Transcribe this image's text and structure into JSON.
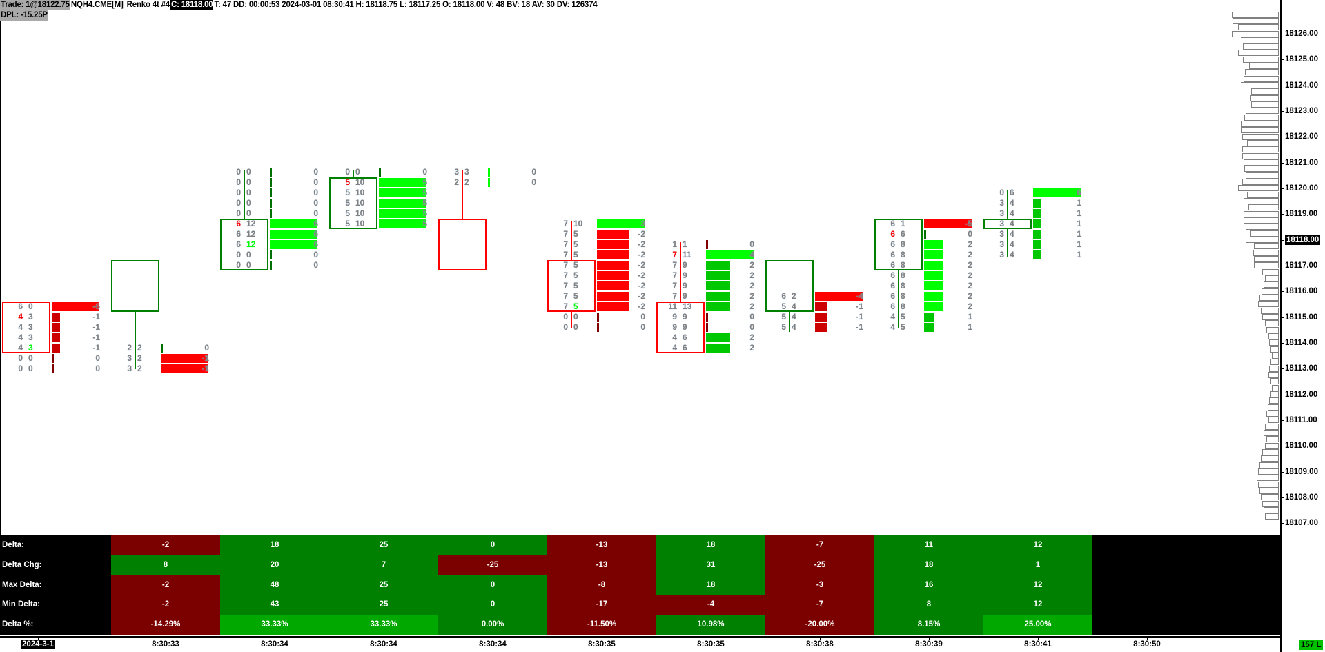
{
  "header": {
    "trade": "Trade: 1@18122.75",
    "symbol": "NQH4.CME[M]",
    "chart_type": "Renko 4t #4",
    "close": "C: 18118.00",
    "stats": "T: 47 DD: 00:00:53 2024-03-01 08:30:41 H: 18118.75 L: 18117.25 O: 18118.00 V: 48 BV: 18 AV: 30 DV: 126374",
    "dpl": "DPL: -15.25P"
  },
  "colors": {
    "up_candle": "#008000",
    "down_candle": "#ff0000",
    "pos_bright": "#00ff00",
    "pos_dim": "#00c800",
    "neg_bright": "#ff0000",
    "neg_dim": "#cc0000",
    "zero_up": "#007000",
    "zero_down": "#800000",
    "cell_neg": "#7b0000",
    "cell_pos": "#008000",
    "cell_strong": "#00a800",
    "bid_highlight": "#ff0000",
    "ask_highlight": "#00ff00"
  },
  "price_axis": {
    "labels": [
      "18126.00",
      "18125.00",
      "18124.00",
      "18123.00",
      "18122.00",
      "18121.00",
      "18120.00",
      "18119.00",
      "18118.00",
      "18117.00",
      "18116.00",
      "18115.00",
      "18114.00",
      "18113.00",
      "18112.00",
      "18111.00",
      "18110.00",
      "18109.00",
      "18108.00",
      "18107.00"
    ],
    "current": "18118.00"
  },
  "volume_profile": {
    "top_price": 18126.75,
    "tick": 0.25,
    "levels": [
      68,
      67,
      59,
      68,
      55,
      52,
      59,
      52,
      43,
      49,
      51,
      55,
      40,
      41,
      40,
      48,
      50,
      54,
      54,
      53,
      46,
      53,
      53,
      51,
      50,
      48,
      53,
      59,
      46,
      51,
      44,
      51,
      51,
      48,
      41,
      48,
      36,
      37,
      36,
      36,
      24,
      20,
      22,
      25,
      28,
      30,
      26,
      24,
      20,
      18,
      15,
      14,
      12,
      10,
      12,
      14,
      15,
      12,
      10,
      12,
      14,
      16,
      18,
      15,
      20,
      22,
      18,
      20,
      24,
      26,
      28,
      30,
      32,
      30,
      28,
      26,
      24,
      22,
      20
    ]
  },
  "candles": [
    {
      "dir": "down",
      "open": 18116.0,
      "close": 18115.0,
      "high": 18116.0,
      "low": 18115.0,
      "rows": [
        [
          18116.0,
          6,
          0,
          -6
        ],
        [
          18115.75,
          4,
          3,
          -1,
          "bid"
        ],
        [
          18115.5,
          4,
          3,
          -1
        ],
        [
          18115.25,
          4,
          3,
          -1
        ],
        [
          18115.0,
          4,
          3,
          -1,
          "ask"
        ],
        [
          18114.75,
          0,
          0,
          0
        ],
        [
          18114.5,
          0,
          0,
          0
        ]
      ]
    },
    {
      "dir": "up",
      "open": 18116.0,
      "close": 18117.0,
      "high": 18117.0,
      "low": 18114.5,
      "rows": [
        [
          18115.0,
          2,
          2,
          0
        ],
        [
          18114.75,
          3,
          2,
          -1
        ],
        [
          18114.5,
          3,
          2,
          -1
        ]
      ]
    },
    {
      "dir": "up",
      "open": 18117.0,
      "close": 18118.0,
      "high": 18119.25,
      "low": 18116.9,
      "rows": [
        [
          18119.25,
          0,
          0,
          0
        ],
        [
          18119.0,
          0,
          0,
          0
        ],
        [
          18118.75,
          0,
          0,
          0
        ],
        [
          18118.5,
          0,
          0,
          0
        ],
        [
          18118.25,
          0,
          0,
          0
        ],
        [
          18118.0,
          6,
          12,
          6,
          "bid"
        ],
        [
          18117.75,
          6,
          12,
          6
        ],
        [
          18117.5,
          6,
          12,
          6,
          "ask"
        ],
        [
          18117.25,
          0,
          0,
          0
        ],
        [
          18117.0,
          0,
          0,
          0
        ]
      ]
    },
    {
      "dir": "up",
      "open": 18118.0,
      "close": 18119.0,
      "high": 18119.25,
      "low": 18117.9,
      "rows": [
        [
          18119.25,
          0,
          0,
          0
        ],
        [
          18119.0,
          5,
          10,
          5,
          "bid"
        ],
        [
          18118.75,
          5,
          10,
          5
        ],
        [
          18118.5,
          5,
          10,
          5
        ],
        [
          18118.25,
          5,
          10,
          5
        ],
        [
          18118.0,
          5,
          10,
          5
        ]
      ]
    },
    {
      "dir": "down",
      "open": 18118.0,
      "close": 18117.0,
      "high": 18119.25,
      "low": 18117.0,
      "rows": [
        [
          18119.25,
          3,
          3,
          0
        ],
        [
          18119.0,
          2,
          2,
          0
        ]
      ]
    },
    {
      "dir": "down",
      "open": 18117.0,
      "close": 18116.0,
      "high": 18118.0,
      "low": 18115.5,
      "rows": [
        [
          18118.0,
          7,
          10,
          3
        ],
        [
          18117.75,
          7,
          5,
          -2
        ],
        [
          18117.5,
          7,
          5,
          -2
        ],
        [
          18117.25,
          7,
          5,
          -2
        ],
        [
          18117.0,
          7,
          5,
          -2
        ],
        [
          18116.75,
          7,
          5,
          -2
        ],
        [
          18116.5,
          7,
          5,
          -2
        ],
        [
          18116.25,
          7,
          5,
          -2
        ],
        [
          18116.0,
          7,
          5,
          -2,
          "ask"
        ],
        [
          18115.75,
          0,
          0,
          0
        ],
        [
          18115.5,
          0,
          0,
          0
        ]
      ]
    },
    {
      "dir": "down",
      "open": 18116.0,
      "close": 18115.0,
      "high": 18117.5,
      "low": 18115.0,
      "rows": [
        [
          18117.5,
          1,
          1,
          0
        ],
        [
          18117.25,
          7,
          11,
          4,
          "bid"
        ],
        [
          18117.0,
          7,
          9,
          2
        ],
        [
          18116.75,
          7,
          9,
          2
        ],
        [
          18116.5,
          7,
          9,
          2
        ],
        [
          18116.25,
          7,
          9,
          2
        ],
        [
          18116.0,
          11,
          13,
          2
        ],
        [
          18115.75,
          9,
          9,
          0
        ],
        [
          18115.5,
          9,
          9,
          0
        ],
        [
          18115.25,
          4,
          6,
          2
        ],
        [
          18115.0,
          4,
          6,
          2
        ]
      ]
    },
    {
      "dir": "up",
      "open": 18116.0,
      "close": 18117.0,
      "high": 18117.0,
      "low": 18115.4,
      "rows": [
        [
          18116.25,
          6,
          2,
          -4
        ],
        [
          18116.0,
          5,
          4,
          -1
        ],
        [
          18115.75,
          5,
          4,
          -1
        ],
        [
          18115.5,
          5,
          4,
          -1
        ]
      ]
    },
    {
      "dir": "up",
      "open": 18117.0,
      "close": 18118.0,
      "high": 18118.0,
      "low": 18115.5,
      "rows": [
        [
          18118.0,
          6,
          1,
          -5
        ],
        [
          18117.75,
          6,
          6,
          0,
          "bid"
        ],
        [
          18117.5,
          6,
          8,
          2
        ],
        [
          18117.25,
          6,
          8,
          2
        ],
        [
          18117.0,
          6,
          8,
          2
        ],
        [
          18116.75,
          6,
          8,
          2
        ],
        [
          18116.5,
          6,
          8,
          2
        ],
        [
          18116.25,
          6,
          8,
          2
        ],
        [
          18116.0,
          6,
          8,
          2
        ],
        [
          18115.75,
          4,
          5,
          1
        ],
        [
          18115.5,
          4,
          5,
          1
        ]
      ]
    },
    {
      "dir": "up",
      "open": 18118.0,
      "close": 18118.0,
      "high": 18118.75,
      "low": 18117.2,
      "rows": [
        [
          18118.75,
          0,
          6,
          6
        ],
        [
          18118.5,
          3,
          4,
          1
        ],
        [
          18118.25,
          3,
          4,
          1
        ],
        [
          18118.0,
          3,
          4,
          1
        ],
        [
          18117.75,
          3,
          4,
          1
        ],
        [
          18117.5,
          3,
          4,
          1
        ],
        [
          18117.25,
          3,
          4,
          1
        ]
      ]
    }
  ],
  "stats_table": {
    "row_labels": [
      "Delta:",
      "Delta Chg:",
      "Max Delta:",
      "Min Delta:",
      "Delta %:"
    ],
    "columns": [
      [
        "-2",
        "8",
        "-2",
        "-2",
        "-14.29%"
      ],
      [
        "18",
        "20",
        "48",
        "43",
        "33.33%"
      ],
      [
        "25",
        "7",
        "25",
        "25",
        "33.33%"
      ],
      [
        "0",
        "-25",
        "0",
        "0",
        "0.00%"
      ],
      [
        "-13",
        "-13",
        "-8",
        "-17",
        "-11.50%"
      ],
      [
        "18",
        "31",
        "18",
        "-4",
        "10.98%"
      ],
      [
        "-7",
        "-25",
        "-3",
        "-7",
        "-20.00%"
      ],
      [
        "11",
        "18",
        "16",
        "8",
        "8.15%"
      ],
      [
        "12",
        "1",
        "12",
        "12",
        "25.00%"
      ]
    ]
  },
  "time_axis": {
    "date": "2024-3-1",
    "labels": [
      "8:30:33",
      "8:30:34",
      "8:30:34",
      "8:30:34",
      "8:30:35",
      "8:30:35",
      "8:30:38",
      "8:30:39",
      "8:30:41",
      "8:30:50"
    ]
  },
  "status_badge": "157 L"
}
